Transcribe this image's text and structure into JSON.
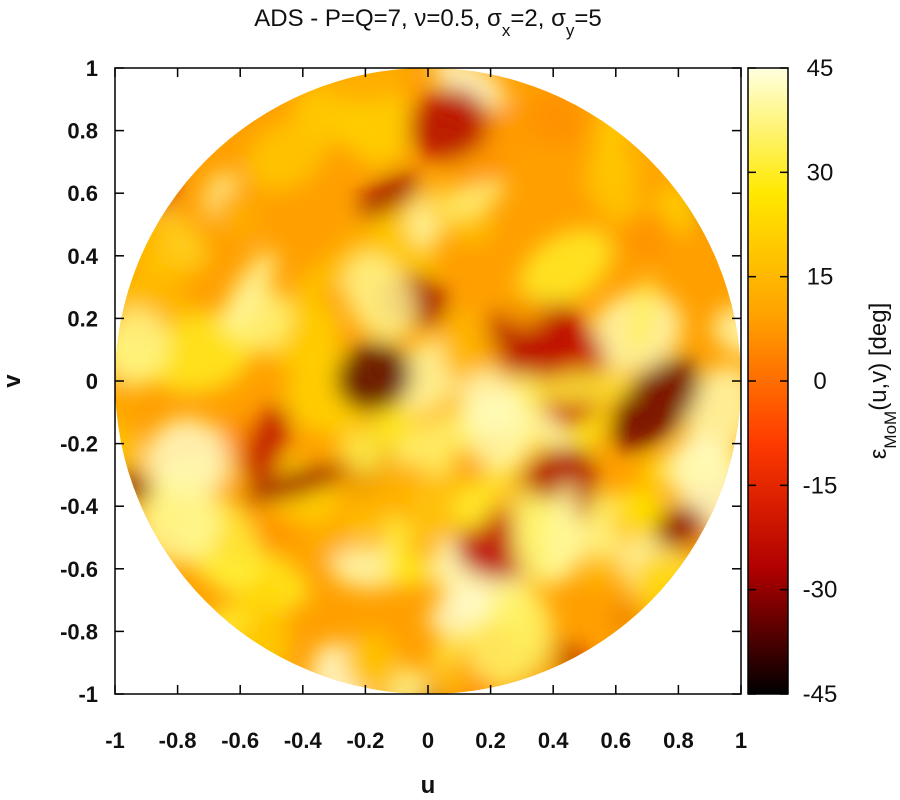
{
  "chart_data": {
    "type": "heatmap",
    "title": {
      "prefix": "ADS - P=Q=7, ",
      "nu_symbol": "ν",
      "nu_value": "=0.5, ",
      "sigma_symbol": "σ",
      "sx_sub": "x",
      "sx_value": "=2, ",
      "sy_sub": "y",
      "sy_value": "=5"
    },
    "xlabel": "u",
    "ylabel": "v",
    "xlim": [
      -1,
      1
    ],
    "ylim": [
      -1,
      1
    ],
    "x_ticks": [
      "-1",
      "-0.8",
      "-0.6",
      "-0.4",
      "-0.2",
      "0",
      "0.2",
      "0.4",
      "0.6",
      "0.8",
      "1"
    ],
    "y_ticks": [
      "1",
      "0.8",
      "0.6",
      "0.4",
      "0.2",
      "0",
      "-0.2",
      "-0.4",
      "-0.6",
      "-0.8",
      "-1"
    ],
    "colorbar": {
      "ticks": [
        "45",
        "30",
        "15",
        "0",
        "-15",
        "-30",
        "-45"
      ],
      "range": [
        -45,
        45
      ],
      "label_epsilon": "ε",
      "label_sub": "MoM",
      "label_rest": "(u,v) [deg]",
      "colormap": [
        "#000000",
        "#b00000",
        "#ff3a00",
        "#ffa000",
        "#ffe800",
        "#ffffe0"
      ]
    },
    "domain_shape": "unit-disk"
  }
}
